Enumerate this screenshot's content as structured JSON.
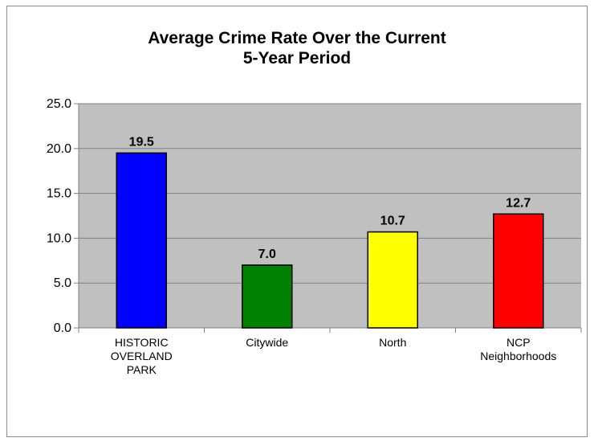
{
  "chart_data": {
    "type": "bar",
    "title": [
      "Average Crime Rate Over the Current",
      "5-Year Period"
    ],
    "categories": [
      [
        "HISTORIC",
        "OVERLAND",
        "PARK"
      ],
      [
        "Citywide"
      ],
      [
        "North"
      ],
      [
        "NCP",
        "Neighborhoods"
      ]
    ],
    "values": [
      19.5,
      7.0,
      10.7,
      12.7
    ],
    "value_labels": [
      "19.5",
      "7.0",
      "10.7",
      "12.7"
    ],
    "bar_colors": [
      "#0000ff",
      "#008000",
      "#ffff00",
      "#ff0000"
    ],
    "ylim": [
      0,
      25
    ],
    "yticks": [
      0,
      5,
      10,
      15,
      20,
      25
    ],
    "ytick_labels": [
      "0.0",
      "5.0",
      "10.0",
      "15.0",
      "20.0",
      "25.0"
    ],
    "plot_background": "#c0c0c0",
    "grid": true,
    "legend": "none",
    "xlabel": "",
    "ylabel": ""
  }
}
